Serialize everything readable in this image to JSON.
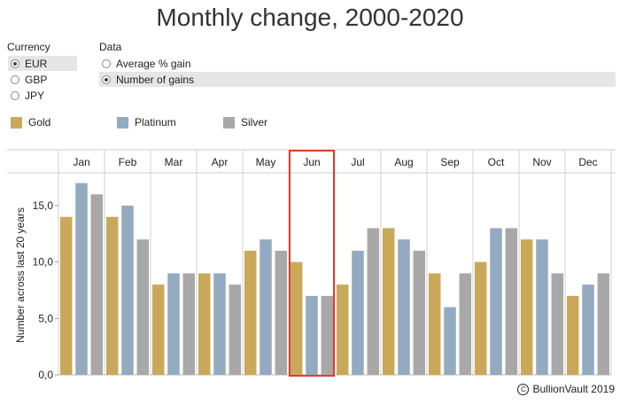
{
  "title": "Monthly change, 2000-2020",
  "currency": {
    "label": "Currency",
    "options": [
      {
        "label": "EUR",
        "selected": true
      },
      {
        "label": "GBP",
        "selected": false
      },
      {
        "label": "JPY",
        "selected": false
      }
    ]
  },
  "data_selector": {
    "label": "Data",
    "options": [
      {
        "label": "Average % gain",
        "selected": false
      },
      {
        "label": "Number of gains",
        "selected": true
      }
    ]
  },
  "legend": [
    {
      "name": "Gold",
      "color": "#c9a959"
    },
    {
      "name": "Platinum",
      "color": "#93aac0"
    },
    {
      "name": "Silver",
      "color": "#a8a8a8"
    }
  ],
  "highlight_month": "Jun",
  "highlight_color": "#e03c2d",
  "footer": {
    "icon": "copyright-icon",
    "text": "BullionVault 2019"
  },
  "chart_data": {
    "type": "bar",
    "categories": [
      "Jan",
      "Feb",
      "Mar",
      "Apr",
      "May",
      "Jun",
      "Jul",
      "Aug",
      "Sep",
      "Oct",
      "Nov",
      "Dec"
    ],
    "series": [
      {
        "name": "Gold",
        "values": [
          14,
          14,
          8,
          9,
          11,
          10,
          8,
          13,
          9,
          10,
          12,
          7
        ]
      },
      {
        "name": "Platinum",
        "values": [
          17,
          15,
          9,
          9,
          12,
          7,
          11,
          12,
          6,
          13,
          12,
          8
        ]
      },
      {
        "name": "Silver",
        "values": [
          16,
          12,
          9,
          8,
          11,
          7,
          13,
          11,
          9,
          13,
          9,
          9
        ]
      }
    ],
    "ylabel": "Number across last 20 years",
    "yticks": [
      "0,0",
      "5,0",
      "10,0",
      "15,0"
    ],
    "ytick_values": [
      0,
      5,
      10,
      15
    ],
    "ylim": [
      0,
      18.5
    ],
    "grid": "vertical month separators"
  }
}
